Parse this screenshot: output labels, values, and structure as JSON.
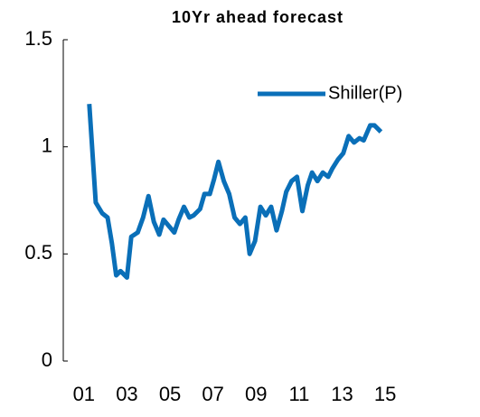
{
  "chart_data": {
    "type": "line",
    "title": "10Yr ahead forecast",
    "x": [
      2001.25,
      2001.55,
      2001.85,
      2002.1,
      2002.3,
      2002.5,
      2002.7,
      2003.0,
      2003.2,
      2003.5,
      2003.75,
      2004.0,
      2004.25,
      2004.5,
      2004.7,
      2004.95,
      2005.2,
      2005.4,
      2005.65,
      2005.9,
      2006.1,
      2006.4,
      2006.6,
      2006.85,
      2007.05,
      2007.25,
      2007.5,
      2007.75,
      2008.0,
      2008.25,
      2008.5,
      2008.7,
      2008.95,
      2009.2,
      2009.45,
      2009.7,
      2009.95,
      2010.2,
      2010.4,
      2010.65,
      2010.9,
      2011.15,
      2011.4,
      2011.6,
      2011.85,
      2012.1,
      2012.35,
      2012.55,
      2012.8,
      2013.05,
      2013.3,
      2013.55,
      2013.8,
      2014.0,
      2014.3,
      2014.5,
      2014.8
    ],
    "series": [
      {
        "name": "Shiller(P)",
        "color": "#0a6fb8",
        "values": [
          1.2,
          0.74,
          0.69,
          0.67,
          0.55,
          0.4,
          0.42,
          0.39,
          0.58,
          0.6,
          0.67,
          0.77,
          0.65,
          0.59,
          0.66,
          0.63,
          0.6,
          0.66,
          0.72,
          0.67,
          0.68,
          0.71,
          0.78,
          0.78,
          0.85,
          0.93,
          0.84,
          0.78,
          0.67,
          0.64,
          0.67,
          0.5,
          0.56,
          0.72,
          0.68,
          0.72,
          0.61,
          0.7,
          0.79,
          0.84,
          0.86,
          0.7,
          0.82,
          0.88,
          0.84,
          0.88,
          0.86,
          0.9,
          0.94,
          0.97,
          1.05,
          1.02,
          1.04,
          1.03,
          1.1,
          1.1,
          1.07
        ]
      }
    ],
    "xlim": [
      2000,
      2018
    ],
    "ylim": [
      0,
      1.5
    ],
    "xticks": [
      {
        "value": 2001,
        "label": "01"
      },
      {
        "value": 2003,
        "label": "03"
      },
      {
        "value": 2005,
        "label": "05"
      },
      {
        "value": 2007,
        "label": "07"
      },
      {
        "value": 2009,
        "label": "09"
      },
      {
        "value": 2011,
        "label": "11"
      },
      {
        "value": 2013,
        "label": "13"
      },
      {
        "value": 2015,
        "label": "15"
      }
    ],
    "yticks": [
      0,
      0.5,
      1,
      1.5
    ],
    "legend": "top-right"
  }
}
